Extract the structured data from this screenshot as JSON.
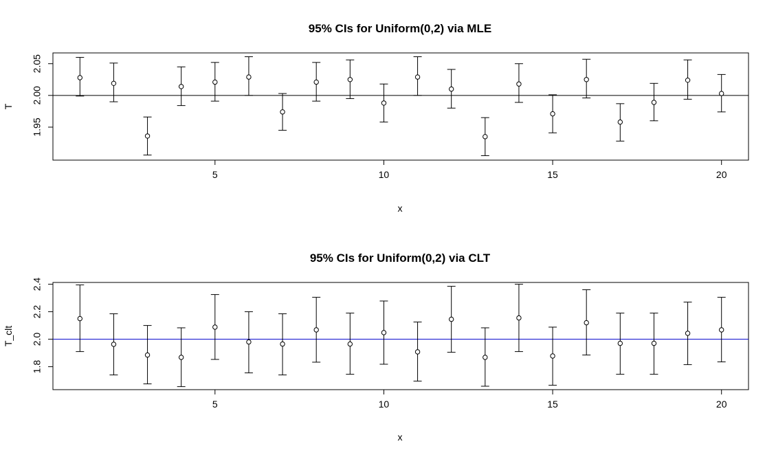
{
  "chart_data": [
    {
      "type": "scatter",
      "title": "95% CIs for Uniform(0,2) via MLE",
      "xlabel": "x",
      "ylabel": "T",
      "xlim": [
        0.2,
        20.8
      ],
      "ylim": [
        1.898,
        2.067
      ],
      "xticks": [
        5,
        10,
        15,
        20
      ],
      "xtick_labels": [
        "5",
        "10",
        "15",
        "20"
      ],
      "yticks": [
        1.95,
        2.0,
        2.05
      ],
      "ytick_labels": [
        "1.95",
        "2.00",
        "2.05"
      ],
      "reference_line": {
        "y": 2.0,
        "color": "#000000"
      },
      "x": [
        1,
        2,
        3,
        4,
        5,
        6,
        7,
        8,
        9,
        10,
        11,
        12,
        13,
        14,
        15,
        16,
        17,
        18,
        19,
        20
      ],
      "estimate": [
        2.028,
        2.019,
        1.936,
        2.014,
        2.021,
        2.029,
        1.974,
        2.021,
        2.025,
        1.988,
        2.029,
        2.01,
        1.935,
        2.018,
        1.971,
        2.025,
        1.958,
        1.989,
        2.024,
        2.003
      ],
      "lower": [
        1.999,
        1.99,
        1.906,
        1.984,
        1.991,
        2.0,
        1.945,
        1.991,
        1.995,
        1.958,
        2.0,
        1.98,
        1.905,
        1.989,
        1.941,
        1.996,
        1.928,
        1.96,
        1.994,
        1.974
      ],
      "upper": [
        2.06,
        2.051,
        1.966,
        2.045,
        2.052,
        2.061,
        2.003,
        2.052,
        2.056,
        2.018,
        2.061,
        2.041,
        1.965,
        2.05,
        2.001,
        2.057,
        1.987,
        2.019,
        2.056,
        2.033
      ],
      "legend": null,
      "grid": false
    },
    {
      "type": "scatter",
      "title": "95% CIs for Uniform(0,2) via CLT",
      "xlabel": "x",
      "ylabel": "T_clt",
      "xlim": [
        0.2,
        20.8
      ],
      "ylim": [
        1.633,
        2.413
      ],
      "xticks": [
        5,
        10,
        15,
        20
      ],
      "xtick_labels": [
        "5",
        "10",
        "15",
        "20"
      ],
      "yticks": [
        1.8,
        2.0,
        2.2,
        2.4
      ],
      "ytick_labels": [
        "1.8",
        "2.0",
        "2.2",
        "2.4"
      ],
      "reference_line": {
        "y": 2.0,
        "color": "#0000cc"
      },
      "x": [
        1,
        2,
        3,
        4,
        5,
        6,
        7,
        8,
        9,
        10,
        11,
        12,
        13,
        14,
        15,
        16,
        17,
        18,
        19,
        20
      ],
      "estimate": [
        2.15,
        1.963,
        1.885,
        1.868,
        2.088,
        1.98,
        1.965,
        2.068,
        1.965,
        2.048,
        1.908,
        2.145,
        1.868,
        2.155,
        1.878,
        2.12,
        1.97,
        1.97,
        2.043,
        2.068
      ],
      "lower": [
        1.91,
        1.74,
        1.675,
        1.655,
        1.853,
        1.755,
        1.74,
        1.833,
        1.745,
        1.818,
        1.695,
        1.905,
        1.658,
        1.91,
        1.665,
        1.885,
        1.745,
        1.745,
        1.815,
        1.835
      ],
      "upper": [
        2.395,
        2.185,
        2.1,
        2.083,
        2.325,
        2.2,
        2.185,
        2.305,
        2.19,
        2.278,
        2.125,
        2.385,
        2.083,
        2.4,
        2.088,
        2.36,
        2.19,
        2.19,
        2.27,
        2.305
      ],
      "legend": null,
      "grid": false
    }
  ],
  "colors": {
    "points": "#000000",
    "mle_reference": "#000000",
    "clt_reference": "#0000cc"
  }
}
